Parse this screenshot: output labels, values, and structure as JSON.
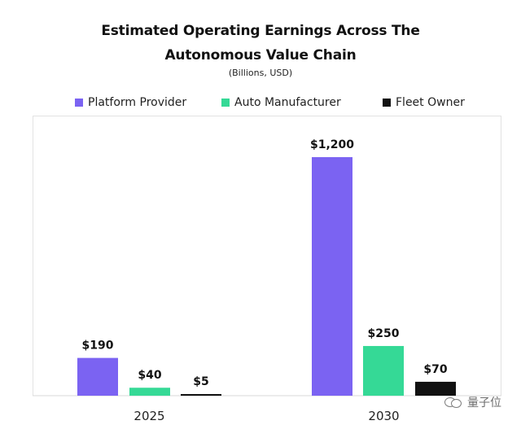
{
  "chart_data": {
    "type": "bar",
    "title": "Estimated Operating Earnings Across The Autonomous Value Chain",
    "title_lines": [
      "Estimated Operating Earnings Across The",
      "Autonomous Value Chain"
    ],
    "subtitle": "(Billions, USD)",
    "categories": [
      "2025",
      "2030"
    ],
    "series": [
      {
        "name": "Platform Provider",
        "values": [
          190,
          1200
        ],
        "labels": [
          "$190",
          "$1,200"
        ],
        "color": "#7b63f2"
      },
      {
        "name": "Auto Manufacturer",
        "values": [
          40,
          250
        ],
        "labels": [
          "$40",
          "$250"
        ],
        "color": "#35d996"
      },
      {
        "name": "Fleet Owner",
        "values": [
          5,
          70
        ],
        "labels": [
          "$5",
          "$70"
        ],
        "color": "#111111"
      }
    ],
    "ylim": [
      0,
      1200
    ],
    "grid": false,
    "legend_position": "top"
  },
  "watermark": {
    "text": "量子位"
  },
  "colors": {
    "background": "#ffffff",
    "text": "#111111",
    "axis": "#d9d9d9"
  }
}
